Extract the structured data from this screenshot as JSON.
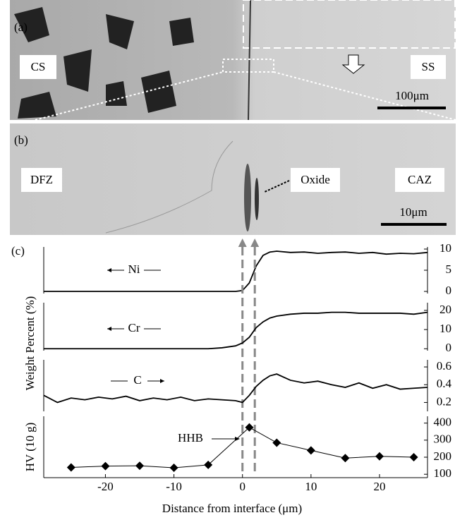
{
  "panels": [
    {
      "label": "(a)",
      "texts": [
        "CS",
        "SS"
      ],
      "scale_bar": "100μm"
    },
    {
      "label": "(b)",
      "texts": [
        "DFZ",
        "Oxide",
        "CAZ"
      ],
      "scale_bar": "10μm"
    }
  ],
  "panel_label_c": "(c)",
  "chart_data": [
    {
      "type": "line",
      "xlim": [
        -29,
        27
      ],
      "ylim": [
        -0.5,
        10.5
      ],
      "yticks": [
        0,
        5,
        10
      ],
      "vlines": [
        0,
        1.8
      ],
      "x": [
        -29,
        -27,
        -25,
        -23,
        -21,
        -19,
        -17,
        -15,
        -13,
        -11,
        -9,
        -7,
        -5,
        -3,
        -1,
        0,
        1,
        2,
        3,
        4,
        5,
        7,
        9,
        11,
        13,
        15,
        17,
        19,
        21,
        23,
        25,
        27
      ],
      "series": [
        {
          "name": "Ni",
          "color": "#000000",
          "values": [
            0,
            0,
            0,
            0,
            0,
            0,
            0,
            0,
            0,
            0,
            0,
            0,
            0,
            0,
            0,
            0.2,
            2,
            6,
            8.5,
            9.3,
            9.5,
            9.2,
            9.3,
            9,
            9.2,
            9.3,
            9,
            9.2,
            8.8,
            9,
            8.9,
            9.2
          ]
        }
      ]
    },
    {
      "type": "line",
      "xlim": [
        -29,
        27
      ],
      "ylim": [
        -1,
        24
      ],
      "yticks": [
        0,
        10,
        20
      ],
      "ylabel": "Weight Percent (%)",
      "x": [
        -29,
        -27,
        -25,
        -23,
        -21,
        -19,
        -17,
        -15,
        -13,
        -11,
        -9,
        -7,
        -5,
        -3,
        -1,
        0,
        1,
        2,
        3,
        4,
        5,
        7,
        9,
        11,
        13,
        15,
        17,
        19,
        21,
        23,
        25,
        27
      ],
      "series": [
        {
          "name": "Cr",
          "color": "#000000",
          "values": [
            0,
            0,
            0,
            0,
            0,
            0,
            0,
            0,
            0,
            0,
            0,
            0,
            0,
            0.5,
            1.5,
            3,
            6,
            11,
            14,
            16,
            17,
            18,
            18.5,
            18.5,
            19,
            19,
            18.5,
            18.5,
            18.5,
            18.5,
            18,
            19
          ]
        }
      ]
    },
    {
      "type": "line",
      "xlim": [
        -29,
        27
      ],
      "ylim": [
        0.1,
        0.68
      ],
      "yticks": [
        0.2,
        0.4,
        0.6
      ],
      "x": [
        -29,
        -27,
        -25,
        -23,
        -21,
        -19,
        -17,
        -15,
        -13,
        -11,
        -9,
        -7,
        -5,
        -3,
        -1,
        0,
        1,
        2,
        3,
        4,
        5,
        7,
        9,
        11,
        13,
        15,
        17,
        19,
        21,
        23,
        25,
        27
      ],
      "series": [
        {
          "name": "C",
          "color": "#000000",
          "values": [
            0.28,
            0.2,
            0.25,
            0.23,
            0.26,
            0.24,
            0.27,
            0.22,
            0.25,
            0.23,
            0.26,
            0.22,
            0.24,
            0.23,
            0.22,
            0.2,
            0.28,
            0.38,
            0.45,
            0.5,
            0.52,
            0.45,
            0.42,
            0.44,
            0.4,
            0.37,
            0.42,
            0.36,
            0.4,
            0.35,
            0.36,
            0.37
          ]
        }
      ]
    },
    {
      "type": "line",
      "xlim": [
        -29,
        27
      ],
      "ylim": [
        80,
        440
      ],
      "yticks": [
        100,
        200,
        300,
        400
      ],
      "xticks": [
        -20,
        -10,
        0,
        10,
        20
      ],
      "ylabel": "HV (10 g)",
      "xlabel": "Distance from interface (μm)",
      "annotations": [
        "HHB"
      ],
      "x": [
        -25,
        -20,
        -15,
        -10,
        -5,
        1,
        5,
        10,
        15,
        20,
        25
      ],
      "series": [
        {
          "color": "#000000",
          "values": [
            140,
            148,
            150,
            138,
            155,
            375,
            285,
            240,
            195,
            205,
            200
          ]
        }
      ]
    }
  ]
}
